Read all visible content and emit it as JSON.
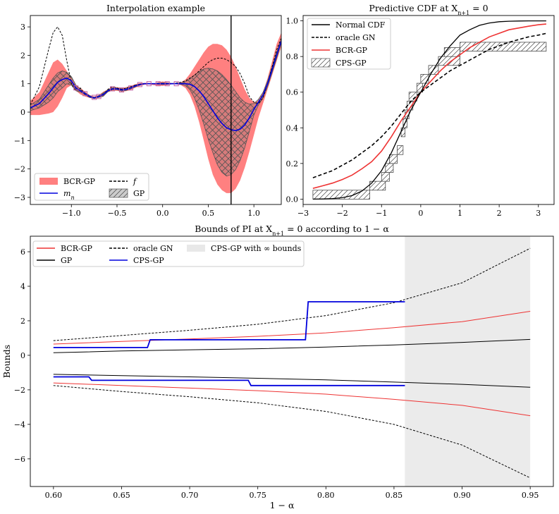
{
  "chart_data": [
    {
      "id": "interp",
      "type": "line",
      "title": "Interpolation example",
      "xlim": [
        -1.45,
        1.3
      ],
      "ylim": [
        -3.25,
        3.4
      ],
      "xticks": [
        -1.0,
        -0.5,
        0.0,
        0.5,
        1.0
      ],
      "xtick_labels": [
        "−1.0",
        "−0.5",
        "0.0",
        "0.5",
        "1.0"
      ],
      "yticks": [
        -3,
        -2,
        -1,
        0,
        1,
        2,
        3
      ],
      "ytick_labels": [
        "−3",
        "−2",
        "−1",
        "0",
        "1",
        "2",
        "3"
      ],
      "vline_x": 0.75,
      "legend": {
        "placement": "lower-left",
        "entries": [
          {
            "label": "BCR-GP",
            "kind": "patch",
            "color": "#ff8080"
          },
          {
            "label": "f",
            "kind": "dashed",
            "color": "#000000"
          },
          {
            "label": "m_n",
            "kind": "line",
            "color": "#0000dd"
          },
          {
            "label": "GP",
            "kind": "hatch",
            "color": "#cccccc"
          }
        ]
      },
      "x": [
        -1.45,
        -1.35,
        -1.25,
        -1.2,
        -1.15,
        -1.1,
        -1.05,
        -1.0,
        -0.95,
        -0.9,
        -0.85,
        -0.8,
        -0.75,
        -0.7,
        -0.65,
        -0.6,
        -0.55,
        -0.5,
        -0.45,
        -0.4,
        -0.35,
        -0.3,
        -0.25,
        -0.2,
        -0.15,
        -0.1,
        -0.05,
        0.0,
        0.05,
        0.1,
        0.15,
        0.2,
        0.25,
        0.3,
        0.35,
        0.4,
        0.45,
        0.5,
        0.55,
        0.6,
        0.65,
        0.7,
        0.75,
        0.8,
        0.85,
        0.9,
        0.95,
        1.0,
        1.05,
        1.1,
        1.15,
        1.2,
        1.25,
        1.3
      ],
      "series": [
        {
          "name": "f",
          "values": [
            0.25,
            0.9,
            2.2,
            2.8,
            3.0,
            2.7,
            1.8,
            1.0,
            0.75,
            0.85,
            0.6,
            0.55,
            0.5,
            0.55,
            0.6,
            0.8,
            0.9,
            0.85,
            0.8,
            0.85,
            0.9,
            0.95,
            0.98,
            1.0,
            1.0,
            1.0,
            1.0,
            1.0,
            1.0,
            1.0,
            1.02,
            1.05,
            1.1,
            1.2,
            1.3,
            1.45,
            1.6,
            1.75,
            1.85,
            1.9,
            1.9,
            1.85,
            1.75,
            1.6,
            1.35,
            1.0,
            0.55,
            0.35,
            0.3,
            0.5,
            1.0,
            1.6,
            2.2,
            2.6
          ]
        },
        {
          "name": "m_n",
          "values": [
            0.15,
            0.3,
            0.65,
            0.85,
            1.05,
            1.15,
            1.2,
            1.1,
            0.85,
            0.75,
            0.65,
            0.55,
            0.5,
            0.55,
            0.62,
            0.75,
            0.82,
            0.82,
            0.78,
            0.8,
            0.85,
            0.92,
            0.97,
            1.0,
            1.0,
            1.0,
            1.0,
            1.0,
            1.0,
            1.0,
            1.0,
            1.0,
            1.0,
            0.98,
            0.9,
            0.75,
            0.55,
            0.3,
            0.05,
            -0.2,
            -0.4,
            -0.55,
            -0.62,
            -0.65,
            -0.6,
            -0.45,
            -0.2,
            0.1,
            0.35,
            0.6,
            1.0,
            1.5,
            2.0,
            2.5
          ]
        },
        {
          "name": "BCR-GP upper",
          "values": [
            0.4,
            0.7,
            1.4,
            1.75,
            1.85,
            1.7,
            1.45,
            1.2,
            0.95,
            0.85,
            0.72,
            0.6,
            0.55,
            0.6,
            0.72,
            0.8,
            0.88,
            0.88,
            0.85,
            0.88,
            0.92,
            0.98,
            1.02,
            1.03,
            1.02,
            1.0,
            1.05,
            1.08,
            1.05,
            1.02,
            1.02,
            1.05,
            1.15,
            1.35,
            1.6,
            1.85,
            2.1,
            2.3,
            2.4,
            2.4,
            2.35,
            2.2,
            1.95,
            1.6,
            1.2,
            0.8,
            0.5,
            0.35,
            0.4,
            0.7,
            1.2,
            1.8,
            2.4,
            2.8
          ]
        },
        {
          "name": "BCR-GP lower",
          "values": [
            -0.1,
            -0.1,
            -0.05,
            0.0,
            0.2,
            0.5,
            0.85,
            0.95,
            0.75,
            0.62,
            0.55,
            0.5,
            0.47,
            0.5,
            0.55,
            0.7,
            0.75,
            0.75,
            0.72,
            0.74,
            0.78,
            0.86,
            0.92,
            0.96,
            0.98,
            0.95,
            0.93,
            0.92,
            0.95,
            0.98,
            0.98,
            0.95,
            0.85,
            0.6,
            0.2,
            -0.35,
            -1.0,
            -1.65,
            -2.2,
            -2.55,
            -2.75,
            -2.85,
            -2.85,
            -2.7,
            -2.4,
            -1.95,
            -1.4,
            -0.8,
            -0.2,
            0.3,
            0.8,
            1.3,
            1.8,
            2.3
          ]
        },
        {
          "name": "GP upper",
          "values": [
            0.25,
            0.45,
            0.95,
            1.2,
            1.38,
            1.45,
            1.4,
            1.25,
            0.95,
            0.8,
            0.68,
            0.58,
            0.52,
            0.58,
            0.68,
            0.78,
            0.85,
            0.85,
            0.82,
            0.84,
            0.88,
            0.95,
            0.99,
            1.01,
            1.0,
            1.0,
            1.02,
            1.03,
            1.02,
            1.01,
            1.01,
            1.02,
            1.07,
            1.17,
            1.3,
            1.42,
            1.52,
            1.55,
            1.52,
            1.45,
            1.32,
            1.15,
            0.95,
            0.72,
            0.5,
            0.35,
            0.28,
            0.3,
            0.45,
            0.7,
            1.1,
            1.6,
            2.1,
            2.55
          ]
        },
        {
          "name": "GP lower",
          "values": [
            0.05,
            0.15,
            0.35,
            0.5,
            0.72,
            0.85,
            1.0,
            0.95,
            0.75,
            0.7,
            0.62,
            0.52,
            0.48,
            0.52,
            0.56,
            0.72,
            0.79,
            0.79,
            0.74,
            0.76,
            0.82,
            0.89,
            0.95,
            0.99,
            1.0,
            1.0,
            0.98,
            0.97,
            0.98,
            0.99,
            0.99,
            0.98,
            0.93,
            0.79,
            0.5,
            0.08,
            -0.42,
            -0.95,
            -1.42,
            -1.85,
            -2.12,
            -2.25,
            -2.2,
            -2.02,
            -1.7,
            -1.25,
            -0.68,
            -0.1,
            0.25,
            0.5,
            0.9,
            1.4,
            1.9,
            2.45
          ]
        }
      ],
      "observations": {
        "x": [
          -0.95,
          -0.85,
          -0.75,
          -0.7,
          -0.55,
          -0.45,
          -0.35,
          -0.25,
          -0.15,
          -0.05,
          0.05,
          0.15
        ],
        "y": [
          0.85,
          0.65,
          0.52,
          0.55,
          0.82,
          0.78,
          0.85,
          0.97,
          1.0,
          1.0,
          1.0,
          1.0
        ]
      }
    },
    {
      "id": "cdf",
      "type": "line",
      "title": "Predictive CDF at X_{n+1} = 0",
      "xlim": [
        -3.0,
        3.4
      ],
      "ylim": [
        -0.03,
        1.03
      ],
      "xticks": [
        -3,
        -2,
        -1,
        0,
        1,
        2,
        3
      ],
      "xtick_labels": [
        "−3",
        "−2",
        "−1",
        "0",
        "1",
        "2",
        "3"
      ],
      "yticks": [
        0.0,
        0.2,
        0.4,
        0.6,
        0.8,
        1.0
      ],
      "ytick_labels": [
        "0.0",
        "0.2",
        "0.4",
        "0.6",
        "0.8",
        "1.0"
      ],
      "legend": {
        "placement": "top-left",
        "entries": [
          {
            "label": "Normal CDF",
            "kind": "line",
            "color": "#000000"
          },
          {
            "label": "oracle GN",
            "kind": "dashed",
            "color": "#000000"
          },
          {
            "label": "BCR-GP",
            "kind": "line",
            "color": "#ee3333"
          },
          {
            "label": "CPS-GP",
            "kind": "hatch",
            "color": "#ffffff"
          }
        ]
      },
      "x": [
        -2.75,
        -2.5,
        -2.25,
        -2.0,
        -1.75,
        -1.5,
        -1.25,
        -1.0,
        -0.75,
        -0.5,
        -0.25,
        0.0,
        0.25,
        0.5,
        0.75,
        1.0,
        1.25,
        1.5,
        1.75,
        2.0,
        2.25,
        2.5,
        2.75,
        3.0,
        3.2
      ],
      "series": [
        {
          "name": "Normal CDF",
          "values": [
            0.0,
            0.001,
            0.003,
            0.008,
            0.02,
            0.045,
            0.09,
            0.16,
            0.26,
            0.38,
            0.5,
            0.6,
            0.7,
            0.79,
            0.86,
            0.92,
            0.95,
            0.975,
            0.988,
            0.995,
            0.998,
            0.999,
            1.0,
            1.0,
            1.0
          ]
        },
        {
          "name": "oracle GN",
          "values": [
            0.12,
            0.14,
            0.16,
            0.19,
            0.22,
            0.26,
            0.3,
            0.35,
            0.41,
            0.48,
            0.55,
            0.6,
            0.64,
            0.68,
            0.72,
            0.75,
            0.78,
            0.81,
            0.84,
            0.86,
            0.88,
            0.895,
            0.91,
            0.92,
            0.93
          ]
        },
        {
          "name": "BCR-GP",
          "values": [
            0.06,
            0.075,
            0.09,
            0.11,
            0.135,
            0.17,
            0.21,
            0.27,
            0.35,
            0.44,
            0.52,
            0.6,
            0.66,
            0.72,
            0.77,
            0.81,
            0.85,
            0.88,
            0.91,
            0.93,
            0.95,
            0.96,
            0.97,
            0.978,
            0.982
          ]
        }
      ],
      "cps_boxes": [
        [
          -2.75,
          -1.3,
          0.0,
          0.05
        ],
        [
          -1.3,
          -0.9,
          0.05,
          0.1
        ],
        [
          -1.0,
          -0.8,
          0.1,
          0.15
        ],
        [
          -0.9,
          -0.7,
          0.15,
          0.2
        ],
        [
          -0.8,
          -0.6,
          0.2,
          0.25
        ],
        [
          -0.6,
          -0.45,
          0.25,
          0.3
        ],
        [
          -0.5,
          -0.4,
          0.35,
          0.4
        ],
        [
          -0.45,
          -0.35,
          0.4,
          0.45
        ],
        [
          -0.4,
          -0.3,
          0.45,
          0.5
        ],
        [
          -0.35,
          -0.2,
          0.5,
          0.55
        ],
        [
          -0.3,
          -0.1,
          0.55,
          0.6
        ],
        [
          -0.1,
          0.05,
          0.6,
          0.65
        ],
        [
          0.0,
          0.2,
          0.65,
          0.7
        ],
        [
          0.2,
          0.45,
          0.7,
          0.75
        ],
        [
          0.45,
          1.0,
          0.75,
          0.8
        ],
        [
          0.6,
          1.0,
          0.8,
          0.85
        ],
        [
          1.0,
          3.2,
          0.83,
          0.88
        ]
      ]
    },
    {
      "id": "bounds",
      "type": "line",
      "title": "Bounds of PI at X_{n+1} = 0 according to 1 − α",
      "xlabel": "1 − α",
      "ylabel": "Bounds",
      "xlim": [
        0.583,
        0.967
      ],
      "ylim": [
        -7.6,
        6.9
      ],
      "xticks": [
        0.6,
        0.65,
        0.7,
        0.75,
        0.8,
        0.85,
        0.9,
        0.95
      ],
      "xtick_labels": [
        "0.60",
        "0.65",
        "0.70",
        "0.75",
        "0.80",
        "0.85",
        "0.90",
        "0.95"
      ],
      "yticks": [
        -6,
        -4,
        -2,
        0,
        2,
        4,
        6
      ],
      "ytick_labels": [
        "−6",
        "−4",
        "−2",
        "0",
        "2",
        "4",
        "6"
      ],
      "shaded_region": [
        0.858,
        0.95
      ],
      "legend": {
        "placement": "top-left",
        "entries": [
          {
            "label": "BCR-GP",
            "kind": "line",
            "color": "#ee3333"
          },
          {
            "label": "oracle GN",
            "kind": "dashed",
            "color": "#000000"
          },
          {
            "label": "CPS-GP with ∞ bounds",
            "kind": "patch",
            "color": "#e8e8e8"
          },
          {
            "label": "GP",
            "kind": "line",
            "color": "#000000"
          },
          {
            "label": "CPS-GP",
            "kind": "line",
            "color": "#0000dd"
          }
        ]
      },
      "x": [
        0.6,
        0.65,
        0.7,
        0.75,
        0.8,
        0.85,
        0.9,
        0.95
      ],
      "series": [
        {
          "name": "BCR-GP upper",
          "values": [
            0.65,
            0.8,
            0.95,
            1.1,
            1.3,
            1.6,
            1.95,
            2.55
          ]
        },
        {
          "name": "BCR-GP lower",
          "values": [
            -1.6,
            -1.75,
            -1.9,
            -2.05,
            -2.25,
            -2.55,
            -2.9,
            -3.5
          ]
        },
        {
          "name": "GP upper",
          "values": [
            0.15,
            0.25,
            0.32,
            0.38,
            0.48,
            0.6,
            0.75,
            0.92
          ]
        },
        {
          "name": "GP lower",
          "values": [
            -1.1,
            -1.18,
            -1.25,
            -1.33,
            -1.42,
            -1.55,
            -1.68,
            -1.85
          ]
        },
        {
          "name": "oracle GN upper",
          "values": [
            0.85,
            1.15,
            1.45,
            1.8,
            2.3,
            3.05,
            4.2,
            6.2
          ]
        },
        {
          "name": "oracle GN lower",
          "values": [
            -1.75,
            -2.1,
            -2.4,
            -2.75,
            -3.25,
            -4.0,
            -5.2,
            -7.1
          ]
        }
      ],
      "cps_upper": {
        "x": [
          0.6,
          0.669,
          0.669,
          0.671,
          0.671,
          0.785,
          0.785,
          0.787,
          0.787,
          0.858
        ],
        "values": [
          0.45,
          0.45,
          0.45,
          0.9,
          0.9,
          0.9,
          0.9,
          3.1,
          3.1,
          3.1
        ]
      },
      "cps_lower": {
        "x": [
          0.6,
          0.626,
          0.626,
          0.628,
          0.628,
          0.743,
          0.743,
          0.745,
          0.745,
          0.858
        ],
        "values": [
          -1.25,
          -1.25,
          -1.25,
          -1.45,
          -1.45,
          -1.45,
          -1.45,
          -1.75,
          -1.75,
          -1.75
        ]
      }
    }
  ]
}
